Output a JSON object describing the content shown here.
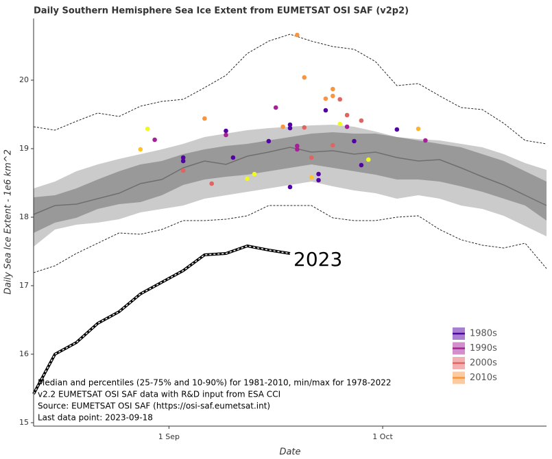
{
  "chart_data": {
    "type": "line",
    "title": "Daily Southern Hemisphere Sea Ice Extent from EUMETSAT OSI SAF (v2p2)",
    "xlabel": "Date",
    "ylabel": "Daily Sea Ice Extent - 1e6 km^2",
    "xlim": [
      225,
      297
    ],
    "xticks": [
      {
        "value": 244,
        "label": "1 Sep"
      },
      {
        "value": 274,
        "label": "1 Oct"
      }
    ],
    "ylim": [
      14.95,
      20.9
    ],
    "yticks": [
      15,
      16,
      17,
      18,
      19,
      20
    ],
    "x": [
      225,
      228,
      231,
      234,
      237,
      240,
      243,
      246,
      249,
      252,
      255,
      258,
      261,
      264,
      267,
      270,
      273,
      276,
      279,
      282,
      285,
      288,
      291,
      294,
      297
    ],
    "max": [
      19.32,
      19.27,
      19.4,
      19.52,
      19.47,
      19.62,
      19.69,
      19.72,
      19.89,
      20.07,
      20.39,
      20.57,
      20.67,
      20.57,
      20.49,
      20.45,
      20.27,
      19.92,
      19.95,
      19.77,
      19.6,
      19.57,
      19.37,
      19.12,
      19.07
    ],
    "p90": [
      18.42,
      18.52,
      18.67,
      18.77,
      18.85,
      18.92,
      18.99,
      19.07,
      19.17,
      19.22,
      19.27,
      19.3,
      19.32,
      19.34,
      19.35,
      19.32,
      19.25,
      19.17,
      19.14,
      19.12,
      19.07,
      19.02,
      18.92,
      18.79,
      18.69
    ],
    "p75": [
      18.29,
      18.32,
      18.42,
      18.55,
      18.67,
      18.77,
      18.82,
      18.92,
      18.99,
      19.04,
      19.07,
      19.12,
      19.17,
      19.22,
      19.24,
      19.22,
      19.22,
      19.17,
      19.12,
      19.07,
      19.02,
      18.92,
      18.82,
      18.67,
      18.52
    ],
    "median": [
      18.04,
      18.17,
      18.19,
      18.27,
      18.35,
      18.49,
      18.55,
      18.72,
      18.82,
      18.77,
      18.89,
      18.95,
      19.02,
      18.95,
      18.97,
      18.92,
      18.95,
      18.87,
      18.82,
      18.84,
      18.72,
      18.59,
      18.47,
      18.32,
      18.17
    ],
    "p25": [
      17.77,
      17.92,
      17.99,
      18.12,
      18.19,
      18.22,
      18.32,
      18.47,
      18.55,
      18.59,
      18.62,
      18.67,
      18.72,
      18.77,
      18.72,
      18.67,
      18.62,
      18.55,
      18.55,
      18.52,
      18.45,
      18.37,
      18.27,
      18.17,
      17.95
    ],
    "p10": [
      17.57,
      17.82,
      17.89,
      17.92,
      17.97,
      18.07,
      18.12,
      18.17,
      18.27,
      18.32,
      18.37,
      18.42,
      18.47,
      18.52,
      18.45,
      18.39,
      18.35,
      18.27,
      18.32,
      18.27,
      18.17,
      18.12,
      18.02,
      17.87,
      17.72
    ],
    "min": [
      17.19,
      17.29,
      17.47,
      17.62,
      17.77,
      17.75,
      17.82,
      17.95,
      17.95,
      17.97,
      18.02,
      18.17,
      18.17,
      18.17,
      17.99,
      17.95,
      17.95,
      18.0,
      18.02,
      17.82,
      17.67,
      17.59,
      17.55,
      17.62,
      17.25
    ],
    "series": [
      {
        "name": "2023",
        "values": [
          15.42,
          16.0,
          16.17,
          16.45,
          16.62,
          16.88,
          17.05,
          17.22,
          17.45,
          17.47,
          17.58,
          17.52,
          17.47,
          null,
          null,
          null,
          null,
          null,
          null,
          null,
          null,
          null,
          null,
          null,
          null
        ]
      }
    ],
    "decades": [
      {
        "name": "1980s",
        "color": "#5302a3",
        "x": [
          246,
          246,
          252,
          253,
          258,
          261,
          261,
          261,
          265,
          265,
          266,
          270,
          271,
          276
        ],
        "values": [
          18.87,
          18.82,
          19.26,
          18.87,
          19.11,
          19.35,
          19.3,
          18.44,
          18.63,
          18.54,
          19.56,
          19.11,
          18.76,
          19.28
        ]
      },
      {
        "name": "1990s",
        "color": "#a62098",
        "x": [
          242,
          252,
          259,
          262,
          262,
          269,
          280
        ],
        "values": [
          19.13,
          19.2,
          19.6,
          19.04,
          18.99,
          19.32,
          19.12
        ]
      },
      {
        "name": "2000s",
        "color": "#e16462",
        "x": [
          246,
          250,
          263,
          264,
          267,
          268,
          269,
          271
        ],
        "values": [
          18.68,
          18.49,
          19.31,
          18.87,
          19.05,
          19.72,
          19.49,
          19.41
        ]
      },
      {
        "name": "2010s",
        "color": "#f89540",
        "x": [
          241,
          240,
          249,
          255,
          256,
          260,
          262,
          263,
          264,
          266,
          267,
          267,
          268,
          272,
          279
        ],
        "values": [
          19.29,
          18.99,
          19.44,
          18.56,
          18.63,
          19.32,
          20.66,
          20.04,
          18.58,
          19.73,
          19.87,
          19.77,
          19.36,
          18.84,
          19.29
        ],
        "point_colors": [
          "#f0f921",
          "#fdc328",
          "#f89540",
          "#f0f921",
          "#f0f921",
          "#f89540",
          "#f89540",
          "#f89540",
          "#fdc328",
          "#f89540",
          "#f89540",
          "#f89540",
          "#f0f921",
          "#f0f921",
          "#fdb42f"
        ]
      }
    ],
    "notes": [
      "Median and percentiles (25-75% and 10-90%) for 1981-2010, min/max for 1978-2022",
      "v2.2 EUMETSAT OSI SAF data with R&D input from ESA CCI",
      "Source: EUMETSAT OSI SAF (https://osi-saf.eumetsat.int)",
      "Last data point: 2023-09-18"
    ]
  }
}
